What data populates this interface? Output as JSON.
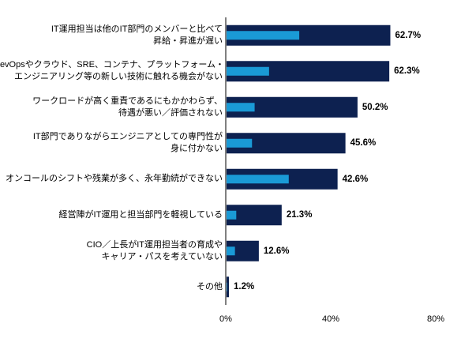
{
  "chart_data": {
    "type": "bar",
    "orientation": "horizontal",
    "categories": [
      [
        "IT運用担当は他のIT部門のメンバーと比べて",
        "昇給・昇進が遅い"
      ],
      [
        "DevOpsやクラウド、SRE、コンテナ、プラットフォーム・",
        "エンジニアリング等の新しい技術に触れる機会がない"
      ],
      [
        "ワークロードが高く重責であるにもかかわらず、",
        "待遇が悪い／評価されない"
      ],
      [
        "IT部門でありながらエンジニアとしての専門性が",
        "身に付かない"
      ],
      [
        "オンコールのシフトや残業が多く、永年勤続ができない"
      ],
      [
        "経営陣がIT運用と担当部門を軽視している"
      ],
      [
        "CIO／上長がIT運用担当者の育成や",
        "キャリア・パスを考えていない"
      ],
      [
        "その他"
      ]
    ],
    "series": [
      {
        "values": [
          62.7,
          62.3,
          50.2,
          45.6,
          42.6,
          21.3,
          12.6,
          1.2
        ],
        "color": "#0d2150",
        "labels": [
          "62.7%",
          "62.3%",
          "50.2%",
          "45.6%",
          "42.6%",
          "21.3%",
          "12.6%",
          "1.2%"
        ]
      },
      {
        "values": [
          28.0,
          16.5,
          11.0,
          10.0,
          24.0,
          4.0,
          3.5,
          0.5
        ],
        "color": "#1a9ad6"
      }
    ],
    "xlim": [
      0,
      80
    ],
    "xticks": [
      "0%",
      "40%",
      "80%"
    ],
    "grid": false,
    "legend": "none"
  }
}
